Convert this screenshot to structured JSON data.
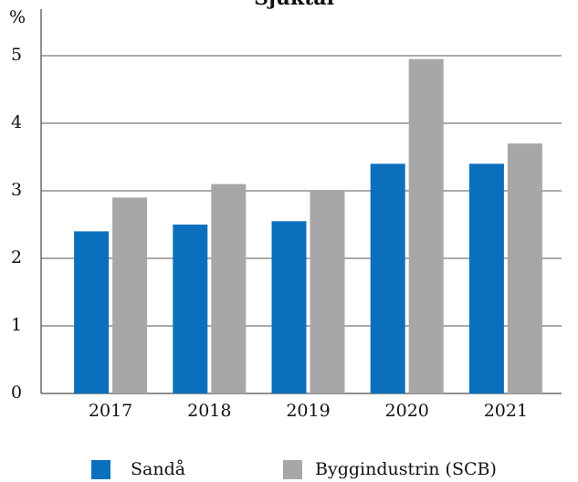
{
  "chart_data": {
    "type": "bar",
    "title": "Sjuktal",
    "y_label": "%",
    "categories": [
      "2017",
      "2018",
      "2019",
      "2020",
      "2021"
    ],
    "series": [
      {
        "name": "Sandå",
        "color": "#0a70bd",
        "values": [
          2.4,
          2.5,
          2.55,
          3.4,
          3.4
        ]
      },
      {
        "name": "Byggindustrin (SCB)",
        "color": "#a7a7a9",
        "values": [
          2.9,
          3.1,
          3.0,
          4.95,
          3.7
        ]
      }
    ],
    "ylim": [
      0,
      5
    ],
    "yticks": [
      0,
      1,
      2,
      3,
      4,
      5
    ],
    "grid": true
  }
}
